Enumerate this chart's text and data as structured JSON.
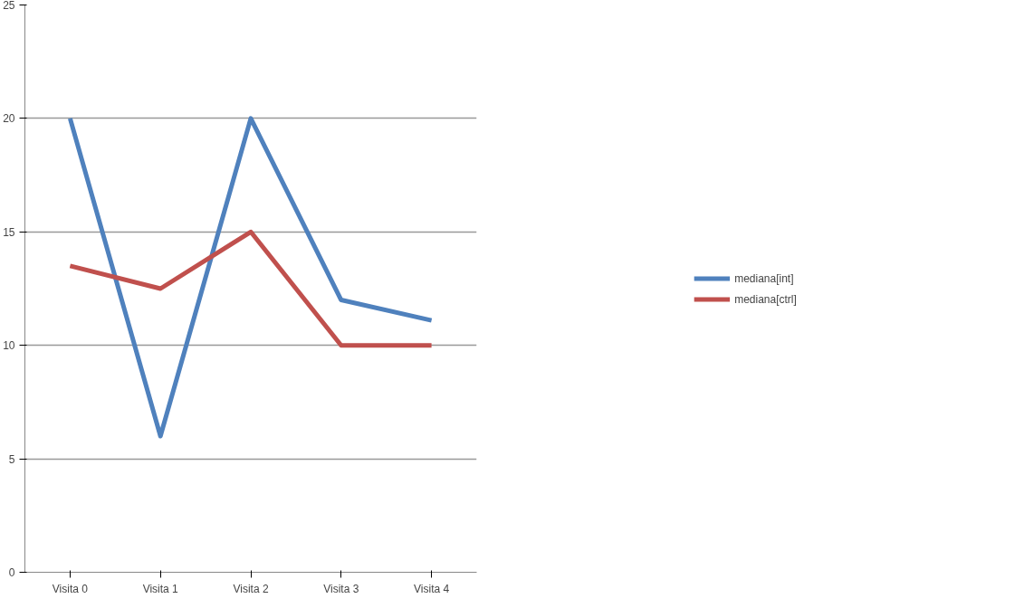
{
  "chart_data": {
    "type": "line",
    "categories": [
      "Visita 0",
      "Visita 1",
      "Visita 2",
      "Visita 3",
      "Visita 4"
    ],
    "series": [
      {
        "name": "mediana[int]",
        "color": "#4f81bd",
        "values": [
          20,
          6,
          20,
          12,
          11.1
        ]
      },
      {
        "name": "mediana[ctrl]",
        "color": "#c0504d",
        "values": [
          13.5,
          12.5,
          15,
          10,
          10
        ]
      }
    ],
    "ylim": [
      0,
      25
    ],
    "yticks": [
      0,
      5,
      10,
      15,
      20,
      25
    ],
    "grid": "y",
    "legend": "right",
    "marker": "none",
    "line_style": "solid"
  }
}
